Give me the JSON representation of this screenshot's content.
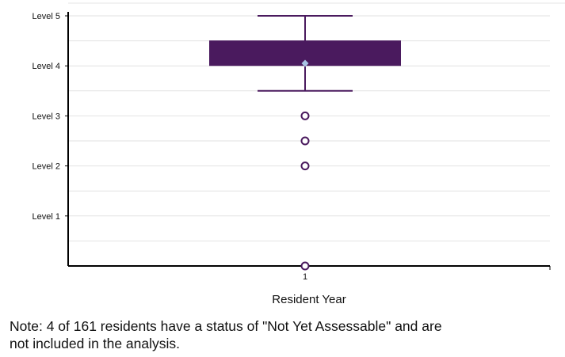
{
  "chart_data": {
    "type": "box",
    "title": "",
    "xlabel": "Resident Year",
    "ylabel": "",
    "categories": [
      "1"
    ],
    "y_tick_labels": [
      "Level 1",
      "Level 2",
      "Level 3",
      "Level 4",
      "Level 5"
    ],
    "y_tick_values": [
      1,
      2,
      3,
      4,
      5
    ],
    "ylim": [
      0,
      5
    ],
    "grid": true,
    "boxes": [
      {
        "category": "1",
        "min": 3.5,
        "q1": 4.0,
        "median": 4.5,
        "q3": 4.5,
        "max": 5.0,
        "mean": 4.05,
        "outliers": [
          3.0,
          2.5,
          2.0,
          0.0
        ]
      }
    ],
    "colors": {
      "box": "#4a1a5e",
      "whisker": "#4a1a5e",
      "mean_marker": "#a9c4e4",
      "outlier": "#4a1a5e",
      "grid": "#e2e2e2",
      "axis": "#000000"
    }
  },
  "note": "Note: 4 of 161 residents have a status of \"Not Yet Assessable\" and are\nnot included in the analysis."
}
